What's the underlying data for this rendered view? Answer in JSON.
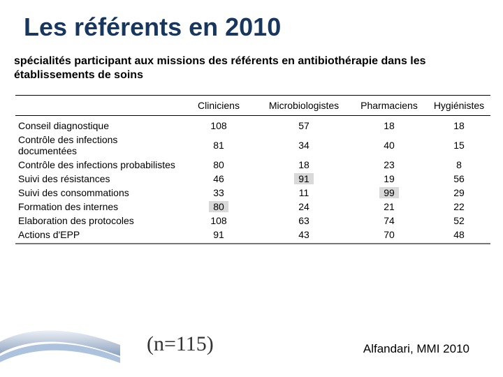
{
  "title": "Les référents en 2010",
  "subtitle": "spécialités participant aux missions des référents en antibiothérapie dans les établissements de soins",
  "table": {
    "columns": [
      "",
      "Cliniciens",
      "Microbiologistes",
      "Pharmaciens",
      "Hygiénistes"
    ],
    "rows": [
      {
        "label": "Conseil diagnostique",
        "values": [
          108,
          57,
          18,
          18
        ],
        "highlight": [
          false,
          false,
          false,
          false
        ]
      },
      {
        "label": "Contrôle des infections documentées",
        "values": [
          81,
          34,
          40,
          15
        ],
        "highlight": [
          false,
          false,
          false,
          false
        ]
      },
      {
        "label": "Contrôle des infections probabilistes",
        "values": [
          80,
          18,
          23,
          8
        ],
        "highlight": [
          false,
          false,
          false,
          false
        ]
      },
      {
        "label": "Suivi des résistances",
        "values": [
          46,
          91,
          19,
          56
        ],
        "highlight": [
          false,
          true,
          false,
          false
        ]
      },
      {
        "label": "Suivi des consommations",
        "values": [
          33,
          11,
          99,
          29
        ],
        "highlight": [
          false,
          false,
          true,
          false
        ]
      },
      {
        "label": "Formation des internes",
        "values": [
          80,
          24,
          21,
          22
        ],
        "highlight": [
          true,
          false,
          false,
          false
        ]
      },
      {
        "label": "Elaboration des protocoles",
        "values": [
          108,
          63,
          74,
          52
        ],
        "highlight": [
          false,
          false,
          false,
          false
        ]
      },
      {
        "label": "Actions d'EPP",
        "values": [
          91,
          43,
          70,
          48
        ],
        "highlight": [
          false,
          false,
          false,
          false
        ]
      }
    ],
    "highlight_color": "#d9d9d9",
    "header_border_color": "#000000",
    "bottom_border_color": "#777777",
    "font_size_pt": 11
  },
  "n_label": "(n=115)",
  "source": "Alfandari, MMI 2010",
  "colors": {
    "title": "#17375e",
    "background": "#ffffff",
    "swoosh_top": "#e9eef5",
    "swoosh_bottom": "#4a6a97"
  }
}
